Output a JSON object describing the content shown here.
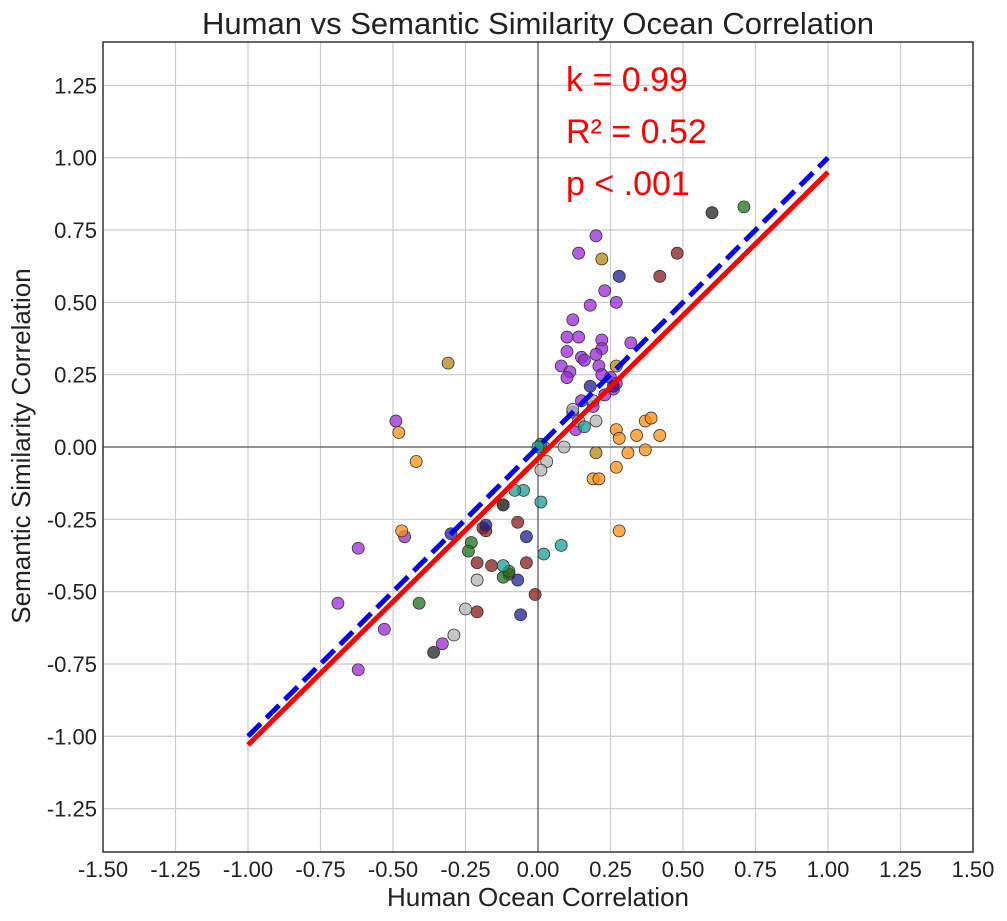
{
  "colors": {
    "purple": "#9b27d9",
    "orange": "#ff8c12",
    "maroon": "#8b1a1a",
    "gray": "#b3b3b3",
    "navy": "#1e1e96",
    "green": "#1e701e",
    "teal": "#179e95",
    "goldenrod": "#b8860b",
    "darkgray": "#222222",
    "fit": "#ff0000",
    "identity": "#0000ff"
  },
  "chart_data": {
    "type": "scatter",
    "title": "Human vs Semantic Similarity Ocean Correlation",
    "xlabel": "Human Ocean Correlation",
    "ylabel": "Semantic Similarity Correlation",
    "xlim": [
      -1.5,
      1.5
    ],
    "ylim": [
      -1.4,
      1.4
    ],
    "xticks": [
      -1.5,
      -1.25,
      -1.0,
      -0.75,
      -0.5,
      -0.25,
      0.0,
      0.25,
      0.5,
      0.75,
      1.0,
      1.25,
      1.5
    ],
    "yticks": [
      -1.25,
      -1.0,
      -0.75,
      -0.5,
      -0.25,
      0.0,
      0.25,
      0.5,
      0.75,
      1.0,
      1.25
    ],
    "xtick_labels": [
      "-1.50",
      "-1.25",
      "-1.00",
      "-0.75",
      "-0.50",
      "-0.25",
      "0.00",
      "0.25",
      "0.50",
      "0.75",
      "1.00",
      "1.25",
      "1.50"
    ],
    "ytick_labels": [
      "-1.25",
      "-1.00",
      "-0.75",
      "-0.50",
      "-0.25",
      "0.00",
      "0.25",
      "0.50",
      "0.75",
      "1.00",
      "1.25"
    ],
    "grid": true,
    "annotations": [
      "k = 0.99",
      "R² = 0.52",
      "p < .001"
    ],
    "lines": [
      {
        "name": "regression fit",
        "color": "fit",
        "style": "solid",
        "x": [
          -1.0,
          1.0
        ],
        "y": [
          -1.03,
          0.95
        ]
      },
      {
        "name": "identity",
        "color": "identity",
        "style": "dashed",
        "x": [
          -1.0,
          1.0
        ],
        "y": [
          -1.0,
          1.0
        ]
      }
    ],
    "series": [
      {
        "name": "purple",
        "color": "purple",
        "points": [
          [
            -0.49,
            0.09
          ],
          [
            -0.46,
            -0.31
          ],
          [
            -0.62,
            -0.35
          ],
          [
            -0.69,
            -0.54
          ],
          [
            -0.62,
            -0.77
          ],
          [
            -0.53,
            -0.63
          ],
          [
            -0.33,
            -0.68
          ],
          [
            0.2,
            0.73
          ],
          [
            0.14,
            0.67
          ],
          [
            0.27,
            0.5
          ],
          [
            0.23,
            0.54
          ],
          [
            0.18,
            0.49
          ],
          [
            0.12,
            0.44
          ],
          [
            0.1,
            0.38
          ],
          [
            0.14,
            0.38
          ],
          [
            0.22,
            0.37
          ],
          [
            0.22,
            0.34
          ],
          [
            0.2,
            0.32
          ],
          [
            0.15,
            0.31
          ],
          [
            0.1,
            0.33
          ],
          [
            0.08,
            0.28
          ],
          [
            0.11,
            0.26
          ],
          [
            0.1,
            0.24
          ],
          [
            0.16,
            0.3
          ],
          [
            0.21,
            0.28
          ],
          [
            0.22,
            0.25
          ],
          [
            0.25,
            0.24
          ],
          [
            0.27,
            0.22
          ],
          [
            0.26,
            0.2
          ],
          [
            0.23,
            0.18
          ],
          [
            0.15,
            0.16
          ],
          [
            0.12,
            0.12
          ],
          [
            0.19,
            0.14
          ],
          [
            0.13,
            0.06
          ],
          [
            0.32,
            0.36
          ]
        ]
      },
      {
        "name": "orange",
        "color": "orange",
        "points": [
          [
            -0.48,
            0.05
          ],
          [
            -0.42,
            -0.05
          ],
          [
            -0.47,
            -0.29
          ],
          [
            0.27,
            0.06
          ],
          [
            0.28,
            0.03
          ],
          [
            0.34,
            0.04
          ],
          [
            0.37,
            0.09
          ],
          [
            0.39,
            0.1
          ],
          [
            0.42,
            0.04
          ],
          [
            0.37,
            -0.01
          ],
          [
            0.31,
            -0.02
          ],
          [
            0.27,
            -0.07
          ],
          [
            0.19,
            -0.11
          ],
          [
            0.21,
            -0.11
          ],
          [
            0.28,
            -0.29
          ]
        ]
      },
      {
        "name": "maroon",
        "color": "maroon",
        "points": [
          [
            0.48,
            0.67
          ],
          [
            0.42,
            0.59
          ],
          [
            -0.19,
            -0.28
          ],
          [
            -0.21,
            -0.4
          ],
          [
            -0.16,
            -0.41
          ],
          [
            -0.1,
            -0.44
          ],
          [
            -0.04,
            -0.4
          ],
          [
            -0.07,
            -0.26
          ],
          [
            -0.21,
            -0.57
          ],
          [
            -0.01,
            -0.51
          ],
          [
            -0.18,
            -0.29
          ]
        ]
      },
      {
        "name": "gray",
        "color": "gray",
        "points": [
          [
            0.12,
            0.13
          ],
          [
            0.14,
            0.09
          ],
          [
            0.2,
            0.09
          ],
          [
            0.19,
            0.16
          ],
          [
            0.09,
            0.0
          ],
          [
            0.03,
            -0.05
          ],
          [
            0.01,
            -0.08
          ],
          [
            -0.12,
            -0.2
          ],
          [
            -0.21,
            -0.46
          ],
          [
            -0.25,
            -0.56
          ],
          [
            -0.29,
            -0.65
          ],
          [
            0.02,
            0.0
          ]
        ]
      },
      {
        "name": "navy",
        "color": "navy",
        "points": [
          [
            0.28,
            0.59
          ],
          [
            0.18,
            0.21
          ],
          [
            0.26,
            0.21
          ],
          [
            -0.18,
            -0.27
          ],
          [
            -0.3,
            -0.3
          ],
          [
            -0.04,
            -0.31
          ],
          [
            -0.07,
            -0.46
          ],
          [
            -0.06,
            -0.58
          ]
        ]
      },
      {
        "name": "green",
        "color": "green",
        "points": [
          [
            0.71,
            0.83
          ],
          [
            -0.41,
            -0.54
          ],
          [
            -0.23,
            -0.33
          ],
          [
            -0.24,
            -0.36
          ],
          [
            -0.12,
            -0.45
          ],
          [
            -0.1,
            -0.43
          ],
          [
            0.01,
            0.01
          ]
        ]
      },
      {
        "name": "teal",
        "color": "teal",
        "points": [
          [
            0.16,
            0.07
          ],
          [
            -0.05,
            -0.15
          ],
          [
            -0.08,
            -0.15
          ],
          [
            0.01,
            -0.19
          ],
          [
            -0.12,
            -0.41
          ],
          [
            0.02,
            -0.37
          ],
          [
            0.08,
            -0.34
          ],
          [
            0.0,
            0.0
          ]
        ]
      },
      {
        "name": "goldenrod",
        "color": "goldenrod",
        "points": [
          [
            0.22,
            0.65
          ],
          [
            -0.31,
            0.29
          ],
          [
            0.27,
            0.28
          ],
          [
            0.2,
            -0.02
          ]
        ]
      },
      {
        "name": "darkgray",
        "color": "darkgray",
        "points": [
          [
            0.6,
            0.81
          ],
          [
            -0.36,
            -0.71
          ],
          [
            -0.12,
            -0.2
          ]
        ]
      }
    ]
  }
}
